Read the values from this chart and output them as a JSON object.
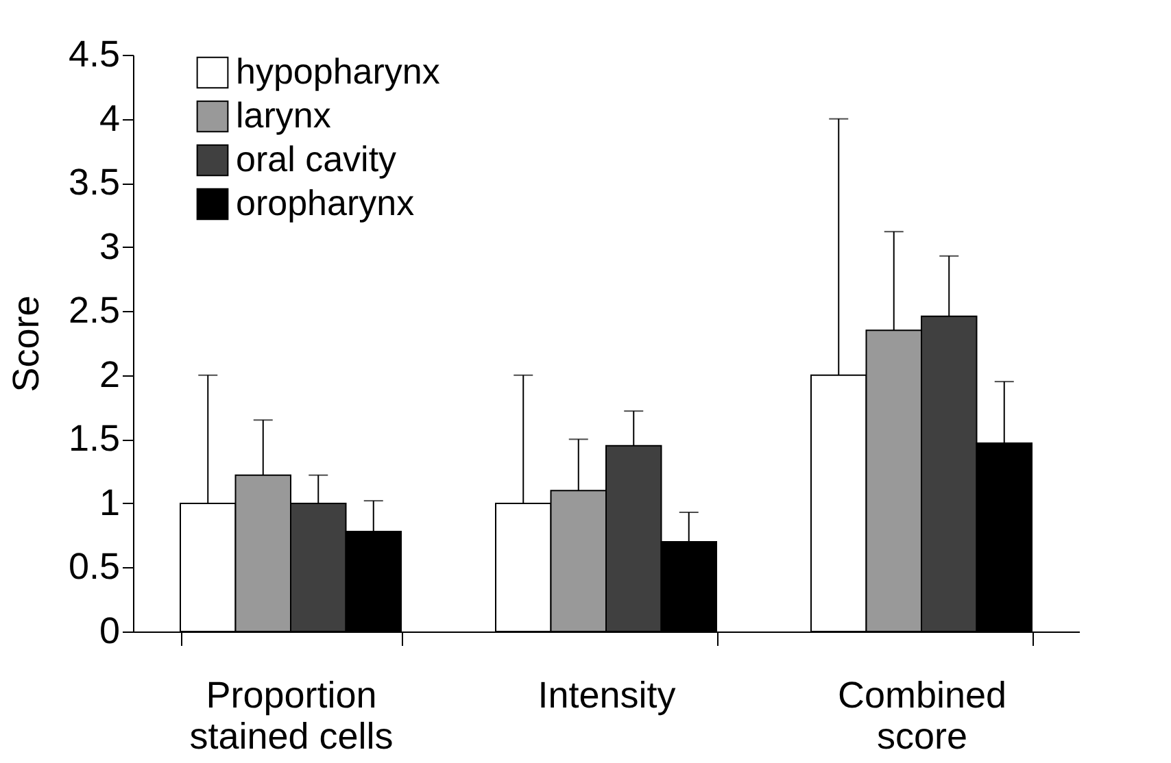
{
  "chart_data": {
    "type": "bar",
    "ylabel": "Score",
    "categories": [
      "Proportion stained cells",
      "Intensity",
      "Combined score"
    ],
    "series": [
      {
        "name": "hypopharynx",
        "color": "#ffffff",
        "values": [
          1.0,
          1.0,
          2.0
        ],
        "errors": [
          [
            1.0,
            2.0
          ],
          [
            1.0,
            2.0
          ],
          [
            2.0,
            4.0
          ]
        ]
      },
      {
        "name": "larynx",
        "color": "#999999",
        "values": [
          1.22,
          1.1,
          2.35
        ],
        "errors": [
          [
            1.22,
            1.65
          ],
          [
            1.1,
            1.5
          ],
          [
            2.35,
            3.12
          ]
        ]
      },
      {
        "name": "oral cavity",
        "color": "#404040",
        "values": [
          1.0,
          1.45,
          2.46
        ],
        "errors": [
          [
            1.0,
            1.22
          ],
          [
            1.45,
            1.72
          ],
          [
            2.46,
            2.93
          ]
        ]
      },
      {
        "name": "oropharynx",
        "color": "#000000",
        "values": [
          0.78,
          0.7,
          1.47
        ],
        "errors": [
          [
            0.78,
            1.02
          ],
          [
            0.7,
            0.93
          ],
          [
            1.47,
            1.95
          ]
        ]
      }
    ],
    "ylim": [
      0,
      4.5
    ],
    "yticks": [
      0,
      0.5,
      1,
      1.5,
      2,
      2.5,
      3,
      3.5,
      4,
      4.5
    ],
    "grid": false,
    "legend": "top left"
  }
}
